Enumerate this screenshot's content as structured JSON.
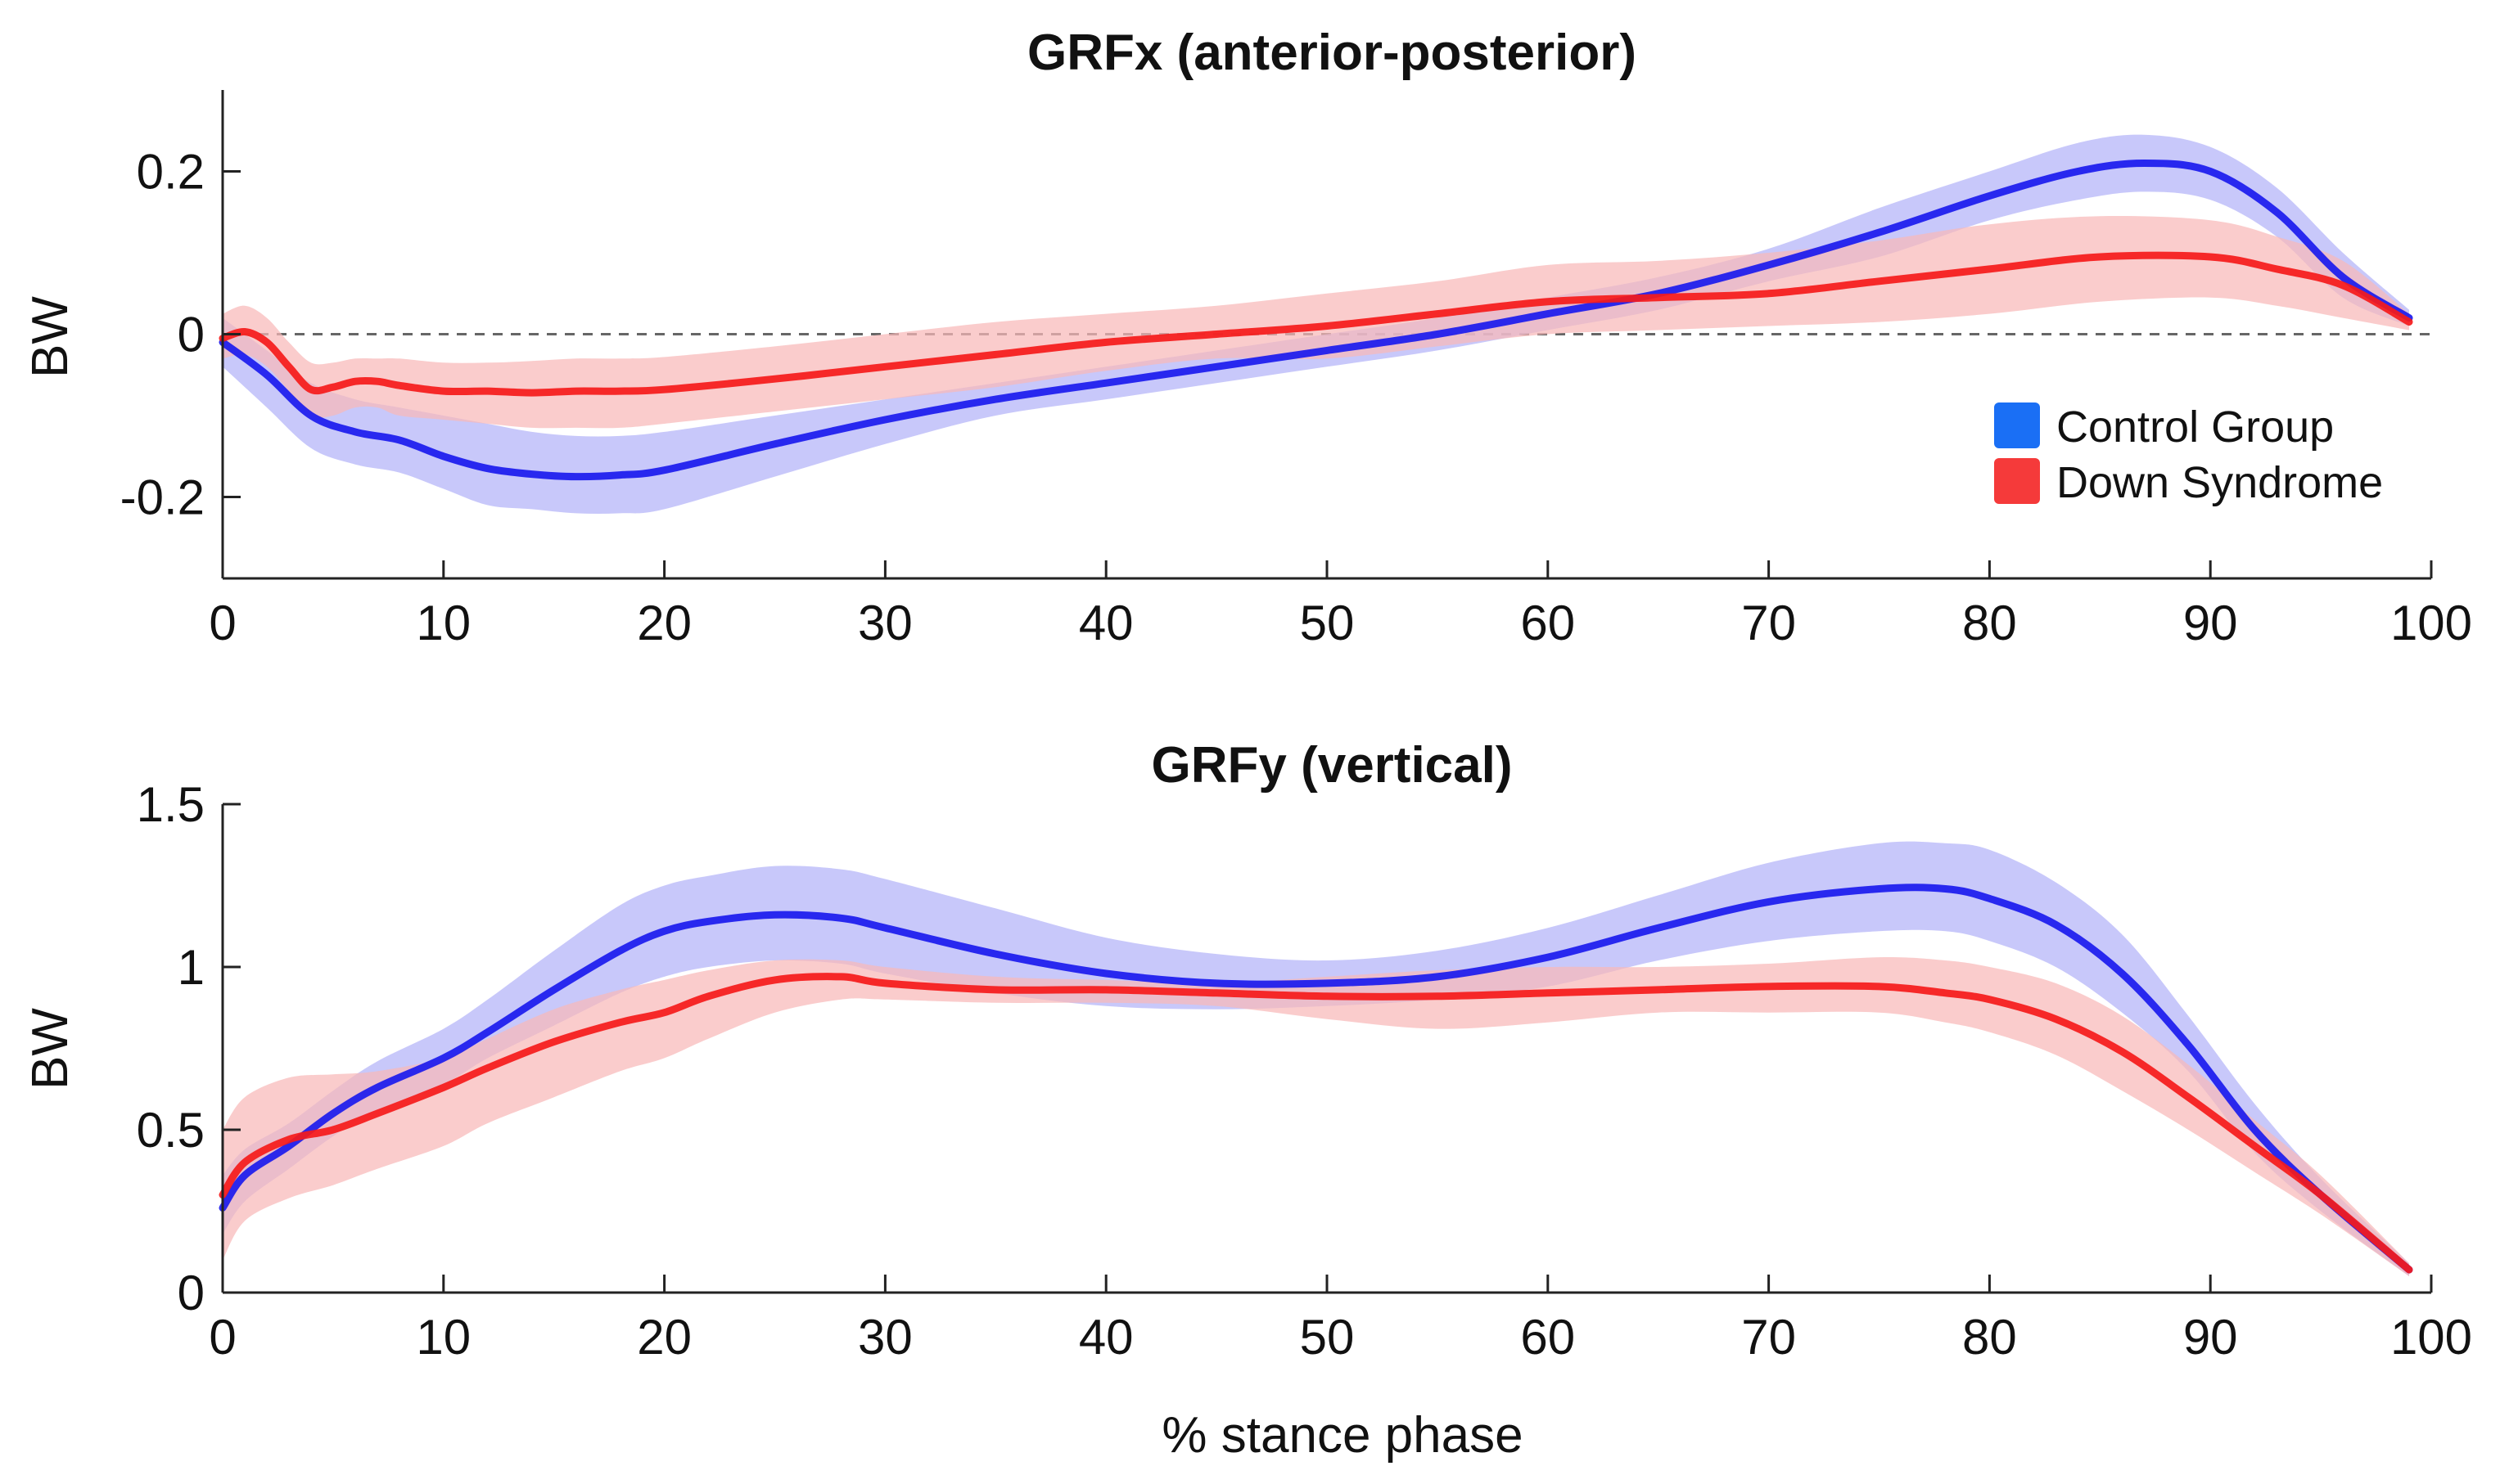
{
  "shared_xlabel": "% stance phase",
  "colors": {
    "control": "#1a1aee",
    "control_band": "#b3b3f8",
    "down": "#f51a1a",
    "down_band": "#f8b8b8",
    "zero_line": "#666666",
    "axis": "#222222",
    "legend_control": "#1a6ff5",
    "legend_down": "#f53a3a"
  },
  "legend": [
    {
      "key": "control",
      "label": "Control Group"
    },
    {
      "key": "down",
      "label": "Down Syndrome"
    }
  ],
  "chart_data": [
    {
      "type": "line",
      "title": "GRFx (anterior-posterior)",
      "xlabel": "",
      "ylabel": "BW",
      "xlim": [
        0,
        100
      ],
      "ylim": [
        -0.3,
        0.3
      ],
      "xticks": [
        0,
        10,
        20,
        30,
        40,
        50,
        60,
        70,
        80,
        90,
        100
      ],
      "yticks": [
        -0.2,
        0,
        0.2
      ],
      "ytick_labels": [
        "-0.2",
        "0",
        "0.2"
      ],
      "zero_line": true,
      "legend_position": "right",
      "series": [
        {
          "name": "Control Group",
          "key": "control",
          "x": [
            0,
            2,
            4,
            6,
            8,
            10,
            12,
            14,
            16,
            18,
            20,
            25,
            30,
            35,
            40,
            45,
            50,
            55,
            60,
            65,
            70,
            75,
            80,
            84,
            87,
            90,
            93,
            96,
            99
          ],
          "y": [
            -0.01,
            -0.05,
            -0.1,
            -0.12,
            -0.13,
            -0.15,
            -0.165,
            -0.172,
            -0.175,
            -0.173,
            -0.167,
            -0.135,
            -0.105,
            -0.08,
            -0.06,
            -0.04,
            -0.02,
            0.0,
            0.025,
            0.05,
            0.085,
            0.125,
            0.17,
            0.2,
            0.21,
            0.2,
            0.15,
            0.07,
            0.02
          ],
          "upper": [
            0.02,
            -0.02,
            -0.06,
            -0.08,
            -0.09,
            -0.1,
            -0.11,
            -0.12,
            -0.125,
            -0.125,
            -0.12,
            -0.1,
            -0.08,
            -0.06,
            -0.04,
            -0.02,
            0.0,
            0.02,
            0.045,
            0.07,
            0.105,
            0.155,
            0.2,
            0.235,
            0.245,
            0.23,
            0.18,
            0.1,
            0.03
          ],
          "lower": [
            -0.04,
            -0.09,
            -0.14,
            -0.16,
            -0.17,
            -0.19,
            -0.21,
            -0.215,
            -0.22,
            -0.22,
            -0.215,
            -0.175,
            -0.135,
            -0.1,
            -0.08,
            -0.06,
            -0.04,
            -0.02,
            0.005,
            0.03,
            0.065,
            0.095,
            0.14,
            0.165,
            0.175,
            0.165,
            0.12,
            0.045,
            0.01
          ]
        },
        {
          "name": "Down Syndrome",
          "key": "down",
          "x": [
            0,
            1,
            2,
            3,
            4,
            5,
            6,
            7,
            8,
            10,
            12,
            14,
            16,
            18,
            20,
            25,
            30,
            35,
            40,
            45,
            50,
            55,
            60,
            65,
            70,
            75,
            80,
            85,
            90,
            93,
            96,
            99
          ],
          "y": [
            -0.005,
            0.003,
            -0.01,
            -0.04,
            -0.068,
            -0.065,
            -0.058,
            -0.058,
            -0.063,
            -0.07,
            -0.07,
            -0.072,
            -0.07,
            -0.07,
            -0.068,
            -0.055,
            -0.04,
            -0.025,
            -0.01,
            0.0,
            0.01,
            0.025,
            0.04,
            0.045,
            0.05,
            0.065,
            0.08,
            0.095,
            0.095,
            0.08,
            0.06,
            0.015
          ],
          "upper": [
            0.025,
            0.035,
            0.02,
            -0.01,
            -0.035,
            -0.035,
            -0.03,
            -0.03,
            -0.03,
            -0.035,
            -0.035,
            -0.033,
            -0.03,
            -0.03,
            -0.028,
            -0.015,
            0.0,
            0.015,
            0.025,
            0.035,
            0.05,
            0.065,
            0.085,
            0.09,
            0.1,
            0.115,
            0.135,
            0.145,
            0.14,
            0.12,
            0.09,
            0.025
          ],
          "lower": [
            -0.03,
            -0.025,
            -0.04,
            -0.07,
            -0.1,
            -0.1,
            -0.09,
            -0.09,
            -0.1,
            -0.105,
            -0.11,
            -0.115,
            -0.115,
            -0.115,
            -0.11,
            -0.095,
            -0.08,
            -0.065,
            -0.045,
            -0.03,
            -0.03,
            -0.015,
            0.0,
            0.005,
            0.01,
            0.015,
            0.025,
            0.04,
            0.045,
            0.035,
            0.02,
            0.005
          ]
        }
      ]
    },
    {
      "type": "line",
      "title": "GRFy (vertical)",
      "xlabel": "% stance phase",
      "ylabel": "BW",
      "xlim": [
        0,
        100
      ],
      "ylim": [
        0,
        1.5
      ],
      "xticks": [
        0,
        10,
        20,
        30,
        40,
        50,
        60,
        70,
        80,
        90,
        100
      ],
      "yticks": [
        0,
        0.5,
        1,
        1.5
      ],
      "ytick_labels": [
        "0",
        "0.5",
        "1",
        "1.5"
      ],
      "zero_line": false,
      "series": [
        {
          "name": "Control Group",
          "key": "control",
          "x": [
            0,
            1,
            3,
            5,
            7,
            10,
            12,
            15,
            18,
            20,
            22,
            25,
            28,
            30,
            35,
            40,
            45,
            50,
            55,
            60,
            65,
            70,
            75,
            78,
            80,
            83,
            86,
            89,
            92,
            95,
            99
          ],
          "y": [
            0.26,
            0.36,
            0.45,
            0.55,
            0.63,
            0.72,
            0.8,
            0.93,
            1.05,
            1.11,
            1.14,
            1.16,
            1.15,
            1.12,
            1.04,
            0.98,
            0.95,
            0.95,
            0.97,
            1.03,
            1.12,
            1.2,
            1.24,
            1.24,
            1.21,
            1.13,
            0.98,
            0.76,
            0.5,
            0.3,
            0.07
          ],
          "upper": [
            0.36,
            0.44,
            0.52,
            0.62,
            0.71,
            0.81,
            0.9,
            1.05,
            1.19,
            1.25,
            1.28,
            1.31,
            1.3,
            1.27,
            1.18,
            1.09,
            1.04,
            1.02,
            1.05,
            1.12,
            1.22,
            1.32,
            1.38,
            1.38,
            1.36,
            1.26,
            1.1,
            0.85,
            0.58,
            0.35,
            0.09
          ],
          "lower": [
            0.18,
            0.28,
            0.38,
            0.48,
            0.56,
            0.64,
            0.72,
            0.82,
            0.92,
            0.97,
            1.0,
            1.02,
            1.01,
            0.98,
            0.92,
            0.88,
            0.87,
            0.88,
            0.9,
            0.94,
            1.02,
            1.08,
            1.11,
            1.11,
            1.08,
            1.0,
            0.86,
            0.68,
            0.43,
            0.25,
            0.05
          ]
        },
        {
          "name": "Down Syndrome",
          "key": "down",
          "x": [
            0,
            1,
            3,
            5,
            7,
            10,
            12,
            15,
            18,
            20,
            22,
            25,
            28,
            30,
            35,
            40,
            45,
            50,
            55,
            60,
            65,
            70,
            75,
            78,
            80,
            83,
            86,
            89,
            92,
            95,
            99
          ],
          "y": [
            0.3,
            0.4,
            0.47,
            0.5,
            0.55,
            0.63,
            0.69,
            0.77,
            0.83,
            0.86,
            0.91,
            0.96,
            0.97,
            0.95,
            0.93,
            0.93,
            0.92,
            0.91,
            0.91,
            0.92,
            0.93,
            0.94,
            0.94,
            0.92,
            0.9,
            0.84,
            0.74,
            0.6,
            0.45,
            0.3,
            0.07
          ],
          "upper": [
            0.5,
            0.6,
            0.66,
            0.67,
            0.68,
            0.72,
            0.78,
            0.87,
            0.93,
            0.96,
            0.99,
            1.02,
            1.02,
            1.0,
            0.97,
            0.96,
            0.95,
            0.97,
            0.99,
            1.0,
            1.0,
            1.01,
            1.03,
            1.02,
            1.0,
            0.95,
            0.85,
            0.7,
            0.53,
            0.36,
            0.09
          ],
          "lower": [
            0.1,
            0.22,
            0.29,
            0.33,
            0.38,
            0.45,
            0.52,
            0.6,
            0.68,
            0.72,
            0.78,
            0.86,
            0.9,
            0.9,
            0.89,
            0.89,
            0.88,
            0.84,
            0.81,
            0.83,
            0.86,
            0.86,
            0.86,
            0.83,
            0.8,
            0.73,
            0.62,
            0.5,
            0.37,
            0.24,
            0.05
          ]
        }
      ]
    }
  ]
}
